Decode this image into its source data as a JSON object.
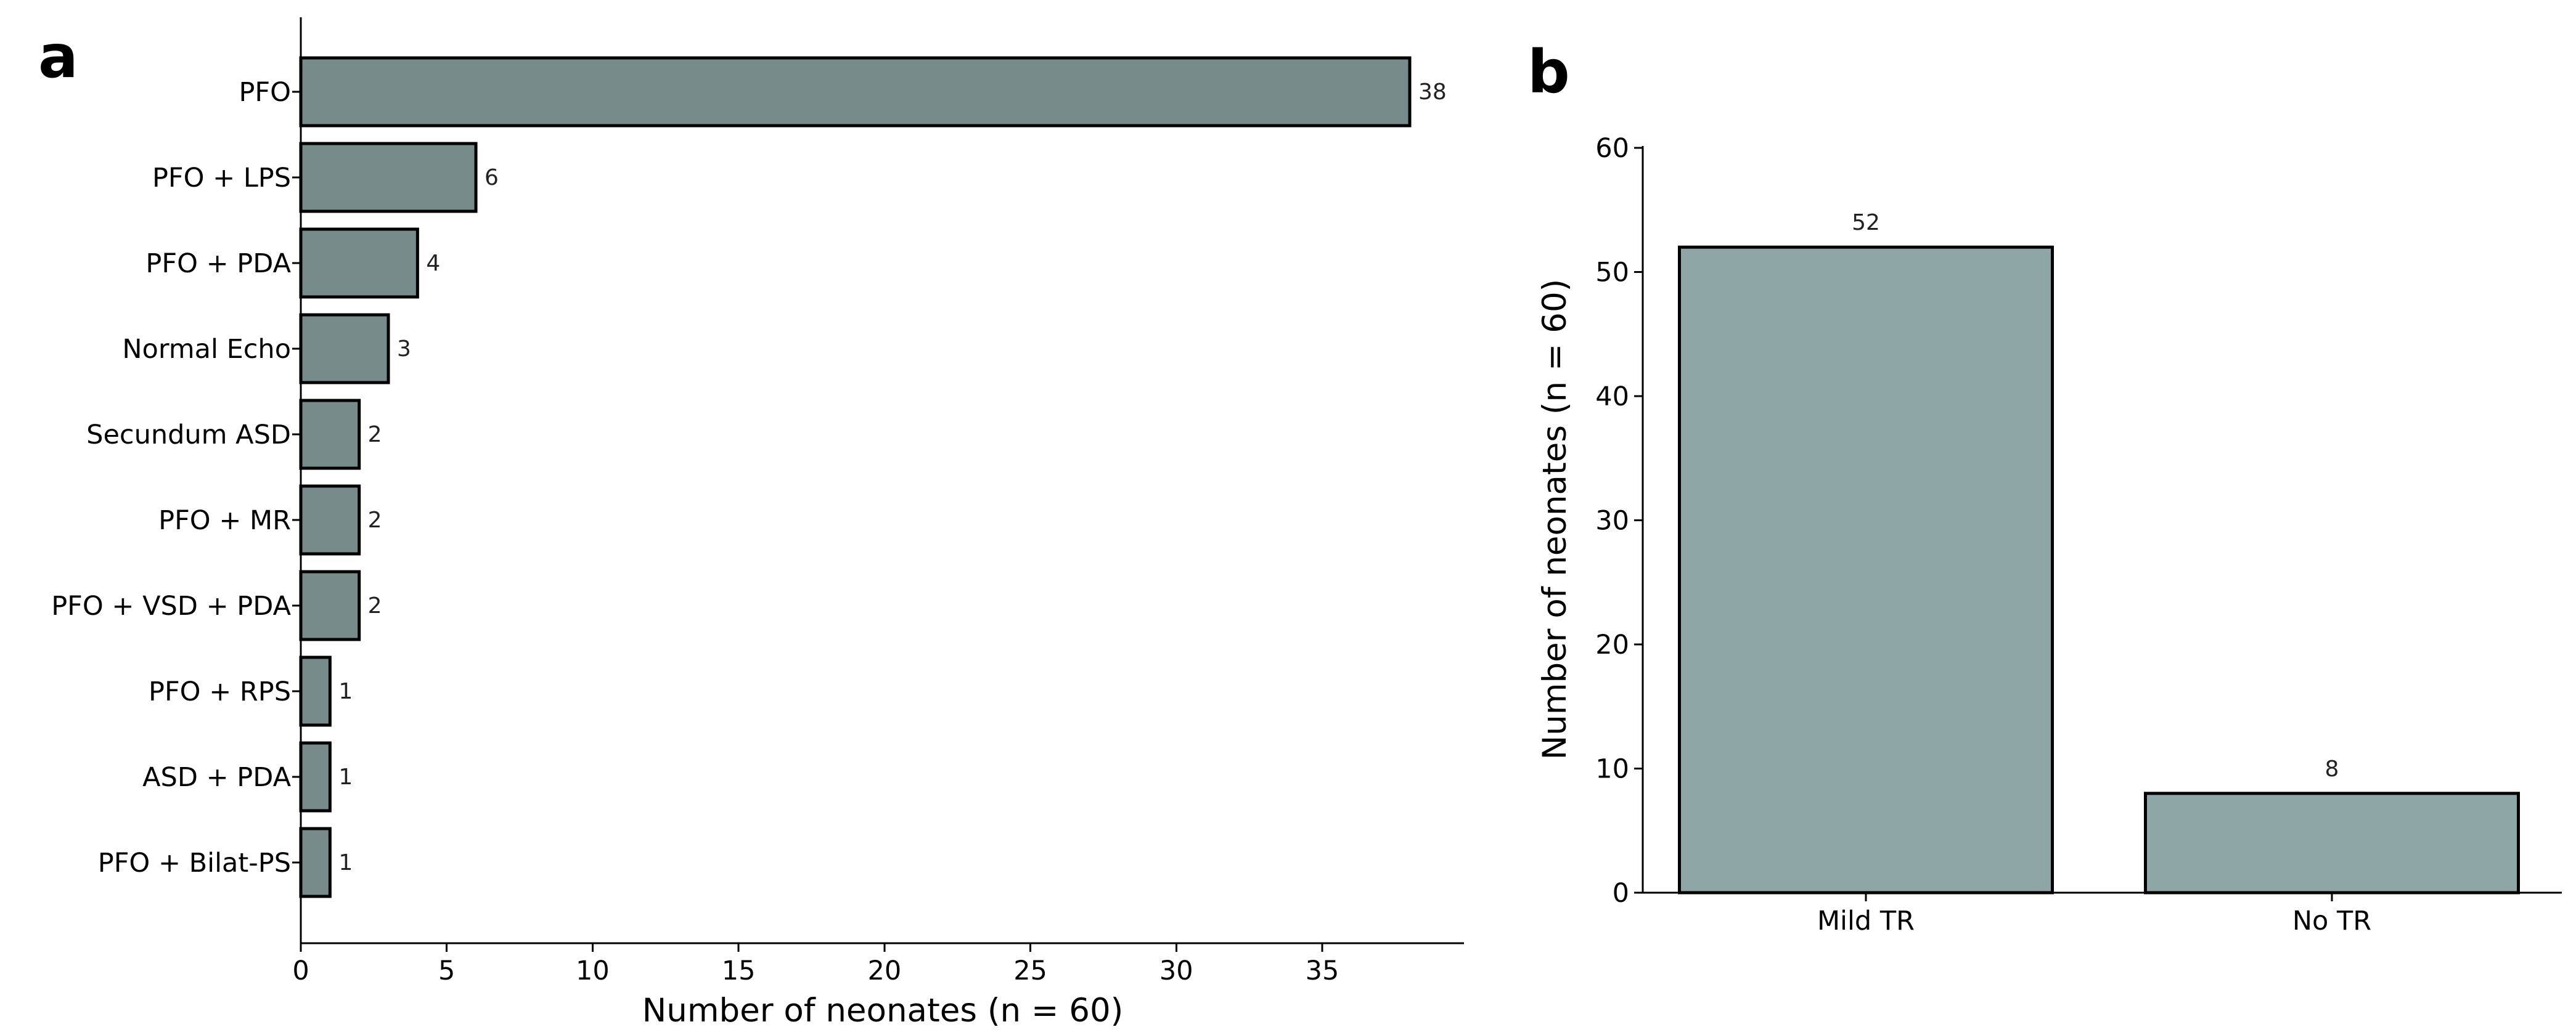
{
  "panels": {
    "a": {
      "letter": "a"
    },
    "b": {
      "letter": "b"
    }
  },
  "chart_data": [
    {
      "type": "bar",
      "orientation": "horizontal",
      "panel": "a",
      "categories": [
        "PFO",
        "PFO + LPS",
        "PFO + PDA",
        "Normal Echo",
        "Secundum ASD",
        "PFO + MR",
        "PFO + VSD + PDA",
        "PFO + RPS",
        "ASD + PDA",
        "PFO + Bilat-PS"
      ],
      "values": [
        38,
        6,
        4,
        3,
        2,
        2,
        2,
        1,
        1,
        1
      ],
      "data_labels": [
        "38",
        "6",
        "4",
        "3",
        "2",
        "2",
        "2",
        "1",
        "1",
        "1"
      ],
      "xlabel": "Number of neonates (n = 60)",
      "ylabel": "",
      "xlim": [
        0,
        40
      ],
      "xticks": [
        0,
        5,
        10,
        15,
        20,
        25,
        30,
        35
      ],
      "bar_color": "#788b8b",
      "grid": false
    },
    {
      "type": "bar",
      "orientation": "vertical",
      "panel": "b",
      "categories": [
        "Mild TR",
        "No TR"
      ],
      "values": [
        52,
        8
      ],
      "data_labels": [
        "52",
        "8"
      ],
      "xlabel": "",
      "ylabel": "Number of neonates (n = 60)",
      "ylim": [
        0,
        60
      ],
      "yticks": [
        0,
        10,
        20,
        30,
        40,
        50,
        60
      ],
      "bar_color": "#8ea6a6",
      "grid": false
    }
  ]
}
